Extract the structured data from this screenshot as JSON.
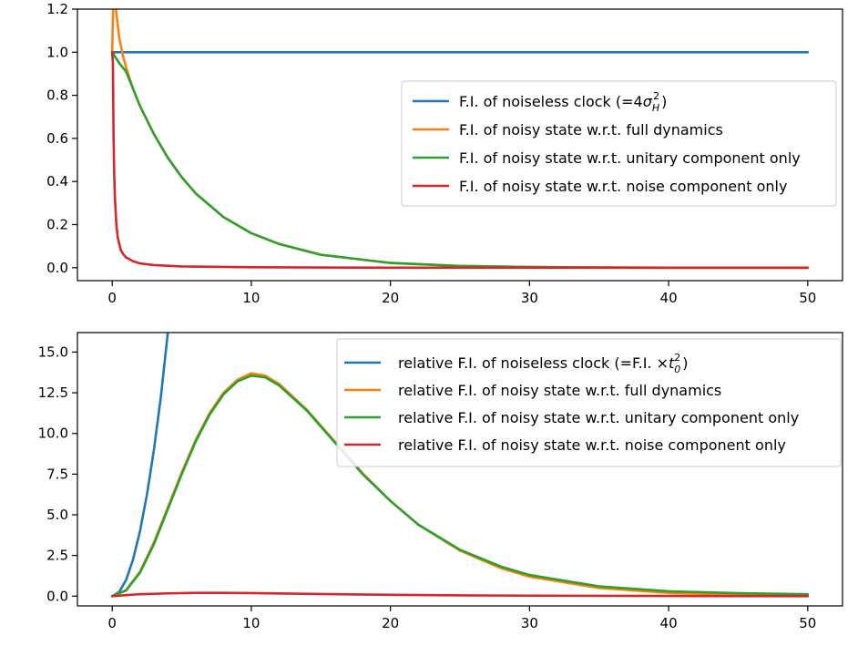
{
  "chart_data": [
    {
      "type": "line",
      "xlim": [
        -2.5,
        52.5
      ],
      "ylim": [
        -0.06,
        1.2
      ],
      "xticks": [
        0,
        10,
        20,
        30,
        40,
        50
      ],
      "yticks": [
        0.0,
        0.2,
        0.4,
        0.6,
        0.8,
        1.0,
        1.2
      ],
      "xtick_labels": [
        "0",
        "10",
        "20",
        "30",
        "40",
        "50"
      ],
      "ytick_labels": [
        "0.0",
        "0.2",
        "0.4",
        "0.6",
        "0.8",
        "1.0",
        "1.2"
      ],
      "legend_position": "center-right",
      "series": [
        {
          "name": "F.I. of noiseless clock (=",
          "name_math": "4σ_H^2",
          "color": "#1f77b4",
          "x": [
            0,
            5,
            10,
            15,
            20,
            25,
            30,
            35,
            40,
            45,
            50
          ],
          "y": [
            1.0,
            1.0,
            1.0,
            1.0,
            1.0,
            1.0,
            1.0,
            1.0,
            1.0,
            1.0,
            1.0
          ]
        },
        {
          "name": "F.I. of noisy state w.r.t. full dynamics",
          "color": "#ff7f0e",
          "x": [
            0,
            0.1,
            0.2,
            0.3,
            0.5,
            0.75,
            1,
            1.5,
            2,
            3,
            4,
            5,
            6,
            8,
            10,
            12,
            15,
            20,
            25,
            30,
            35,
            40,
            45,
            50
          ],
          "y": [
            1.0,
            1.3,
            1.25,
            1.18,
            1.07,
            0.99,
            0.93,
            0.83,
            0.75,
            0.62,
            0.51,
            0.42,
            0.345,
            0.235,
            0.16,
            0.11,
            0.06,
            0.022,
            0.008,
            0.003,
            0.001,
            0.0,
            0.0,
            0.0
          ]
        },
        {
          "name": "F.I. of noisy state w.r.t. unitary component only",
          "color": "#2ca02c",
          "x": [
            0,
            0.5,
            1,
            1.5,
            2,
            3,
            4,
            5,
            6,
            8,
            10,
            12,
            15,
            20,
            25,
            30,
            35,
            40,
            45,
            50
          ],
          "y": [
            1.0,
            0.95,
            0.91,
            0.83,
            0.75,
            0.62,
            0.51,
            0.42,
            0.345,
            0.235,
            0.16,
            0.11,
            0.06,
            0.022,
            0.008,
            0.003,
            0.001,
            0.0,
            0.0,
            0.0
          ]
        },
        {
          "name": "F.I. of noisy state w.r.t. noise component only",
          "color": "#d62728",
          "x": [
            0,
            0.05,
            0.1,
            0.15,
            0.2,
            0.3,
            0.4,
            0.6,
            0.8,
            1,
            1.5,
            2,
            3,
            5,
            10,
            20,
            30,
            40,
            50
          ],
          "y": [
            1.0,
            0.95,
            0.6,
            0.42,
            0.32,
            0.2,
            0.14,
            0.085,
            0.062,
            0.048,
            0.03,
            0.02,
            0.012,
            0.006,
            0.002,
            0.0,
            0.0,
            0.0,
            0.0
          ]
        }
      ]
    },
    {
      "type": "line",
      "xlim": [
        -2.5,
        52.5
      ],
      "ylim": [
        -0.6,
        16.2
      ],
      "xticks": [
        0,
        10,
        20,
        30,
        40,
        50
      ],
      "yticks": [
        0.0,
        2.5,
        5.0,
        7.5,
        10.0,
        12.5,
        15.0
      ],
      "xtick_labels": [
        "0",
        "10",
        "20",
        "30",
        "40",
        "50"
      ],
      "ytick_labels": [
        "0.0",
        "2.5",
        "5.0",
        "7.5",
        "10.0",
        "12.5",
        "15.0"
      ],
      "legend_position": "upper-right",
      "series": [
        {
          "name": "relative F.I. of noiseless clock (=F.I. ×",
          "name_math": "t_0^2",
          "color": "#1f77b4",
          "x": [
            0,
            0.5,
            1,
            1.5,
            2,
            2.5,
            3,
            3.5,
            4
          ],
          "y": [
            0.0,
            0.25,
            1.0,
            2.25,
            4.0,
            6.25,
            9.0,
            12.25,
            16.2
          ]
        },
        {
          "name": "relative F.I. of noisy state w.r.t. full dynamics",
          "color": "#ff7f0e",
          "x": [
            0,
            1,
            2,
            3,
            4,
            5,
            6,
            7,
            8,
            9,
            10,
            11,
            12,
            14,
            16,
            18,
            20,
            22,
            25,
            28,
            30,
            35,
            40,
            45,
            50
          ],
          "y": [
            0.0,
            0.37,
            1.5,
            3.3,
            5.45,
            7.6,
            9.6,
            11.25,
            12.5,
            13.3,
            13.7,
            13.55,
            13.05,
            11.45,
            9.5,
            7.55,
            5.85,
            4.4,
            2.8,
            1.7,
            1.2,
            0.5,
            0.2,
            0.08,
            0.03
          ]
        },
        {
          "name": "relative F.I. of noisy state w.r.t. unitary component only",
          "color": "#2ca02c",
          "x": [
            0,
            1,
            2,
            3,
            4,
            5,
            6,
            7,
            8,
            9,
            10,
            11,
            12,
            14,
            16,
            18,
            20,
            22,
            25,
            28,
            30,
            35,
            40,
            45,
            50
          ],
          "y": [
            0.0,
            0.35,
            1.45,
            3.2,
            5.35,
            7.5,
            9.5,
            11.15,
            12.4,
            13.2,
            13.55,
            13.45,
            12.95,
            11.4,
            9.45,
            7.5,
            5.85,
            4.4,
            2.85,
            1.8,
            1.3,
            0.6,
            0.3,
            0.18,
            0.12
          ]
        },
        {
          "name": "relative F.I. of noisy state w.r.t. noise component only",
          "color": "#d62728",
          "x": [
            0,
            1,
            2,
            4,
            6,
            8,
            10,
            15,
            20,
            25,
            30,
            40,
            50
          ],
          "y": [
            0.0,
            0.06,
            0.12,
            0.17,
            0.2,
            0.2,
            0.19,
            0.13,
            0.08,
            0.05,
            0.03,
            0.01,
            0.0
          ]
        }
      ]
    }
  ]
}
